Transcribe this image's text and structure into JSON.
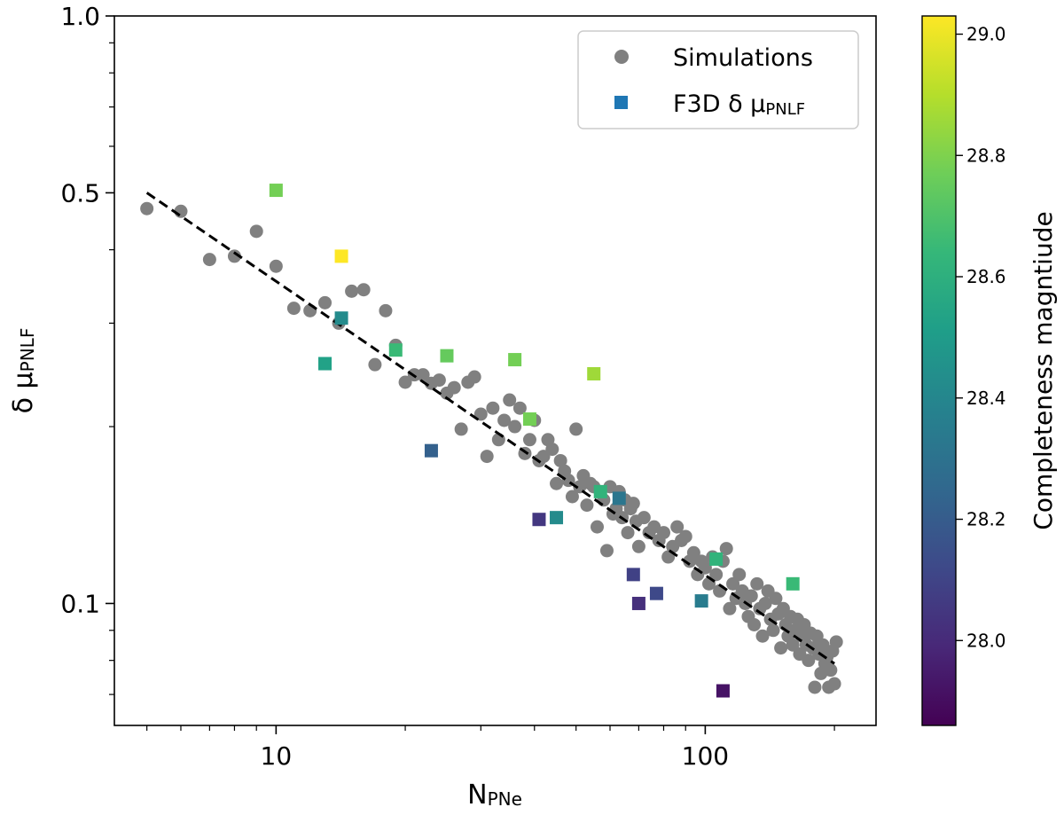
{
  "chart_data": {
    "type": "scatter",
    "xlabel": {
      "main": "N",
      "sub": "PNe"
    },
    "ylabel": {
      "main": "δ μ",
      "sub": "PNLF"
    },
    "xscale": "log",
    "yscale": "log",
    "xlim": [
      4.2,
      250
    ],
    "ylim": [
      0.062,
      1.0
    ],
    "x_major_ticks": [
      10,
      100
    ],
    "x_major_tick_labels": [
      "10",
      "100"
    ],
    "x_minor_ticks": [
      5,
      6,
      7,
      8,
      9,
      20,
      30,
      40,
      50,
      60,
      70,
      80,
      90,
      200
    ],
    "y_major_ticks": [
      0.1,
      0.5,
      1.0
    ],
    "y_major_tick_labels": [
      "0.1",
      "0.5",
      "1.0"
    ],
    "y_minor_ticks": [
      0.07,
      0.08,
      0.09,
      0.2,
      0.3,
      0.4,
      0.6,
      0.7,
      0.8,
      0.9
    ],
    "legend": {
      "position": "top-right",
      "entries": [
        {
          "label": "Simulations",
          "marker": "circle",
          "color": "#808080"
        },
        {
          "label_main": "F3D δ μ",
          "label_sub": "PNLF",
          "marker": "square",
          "color": "#1f77b4"
        }
      ]
    },
    "fit_line": {
      "style": "dashed",
      "color": "#000000",
      "x": [
        5,
        200
      ],
      "y": [
        0.5,
        0.079
      ]
    },
    "colorbar": {
      "label": "Completeness magntiude",
      "range": [
        27.86,
        29.03
      ],
      "ticks": [
        28.0,
        28.2,
        28.4,
        28.6,
        28.8,
        29.0
      ],
      "tick_labels": [
        "28.0",
        "28.2",
        "28.4",
        "28.6",
        "28.8",
        "29.0"
      ],
      "colormap": "viridis",
      "colormap_stops": [
        "#440154",
        "#482878",
        "#3e4989",
        "#31688e",
        "#26828e",
        "#1f9e89",
        "#35b779",
        "#6ece58",
        "#b5de2b",
        "#fde725"
      ]
    },
    "series": [
      {
        "name": "Simulations",
        "marker": "circle",
        "color": "#808080",
        "points": [
          [
            5.0,
            0.47
          ],
          [
            6.0,
            0.465
          ],
          [
            7.0,
            0.385
          ],
          [
            8.0,
            0.39
          ],
          [
            9.0,
            0.43
          ],
          [
            10.0,
            0.375
          ],
          [
            11.0,
            0.318
          ],
          [
            12.0,
            0.315
          ],
          [
            13.0,
            0.325
          ],
          [
            14.0,
            0.3
          ],
          [
            15.0,
            0.34
          ],
          [
            16.0,
            0.342
          ],
          [
            17.0,
            0.255
          ],
          [
            18.0,
            0.315
          ],
          [
            19.0,
            0.275
          ],
          [
            20.0,
            0.238
          ],
          [
            21.0,
            0.245
          ],
          [
            22.0,
            0.245
          ],
          [
            23.0,
            0.237
          ],
          [
            24.0,
            0.24
          ],
          [
            25.0,
            0.228
          ],
          [
            26.0,
            0.233
          ],
          [
            27.0,
            0.198
          ],
          [
            28.0,
            0.238
          ],
          [
            29.0,
            0.243
          ],
          [
            30.0,
            0.21
          ],
          [
            31.0,
            0.178
          ],
          [
            32.0,
            0.215
          ],
          [
            33.0,
            0.19
          ],
          [
            34.0,
            0.205
          ],
          [
            35.0,
            0.222
          ],
          [
            36.0,
            0.2
          ],
          [
            37.0,
            0.215
          ],
          [
            38.0,
            0.18
          ],
          [
            39.0,
            0.19
          ],
          [
            40.0,
            0.205
          ],
          [
            41.0,
            0.175
          ],
          [
            42.0,
            0.178
          ],
          [
            43.0,
            0.19
          ],
          [
            44.0,
            0.183
          ],
          [
            45.0,
            0.16
          ],
          [
            46.0,
            0.175
          ],
          [
            47.0,
            0.168
          ],
          [
            48.0,
            0.162
          ],
          [
            49.0,
            0.152
          ],
          [
            50.0,
            0.198
          ],
          [
            51.0,
            0.158
          ],
          [
            52.0,
            0.165
          ],
          [
            53.0,
            0.147
          ],
          [
            54.0,
            0.16
          ],
          [
            55.0,
            0.158
          ],
          [
            56.0,
            0.135
          ],
          [
            57.0,
            0.155
          ],
          [
            58.0,
            0.15
          ],
          [
            59.0,
            0.123
          ],
          [
            60.0,
            0.158
          ],
          [
            61.0,
            0.142
          ],
          [
            62.0,
            0.145
          ],
          [
            63.0,
            0.155
          ],
          [
            64.0,
            0.14
          ],
          [
            65.0,
            0.15
          ],
          [
            66.0,
            0.132
          ],
          [
            67.0,
            0.145
          ],
          [
            68.0,
            0.148
          ],
          [
            69.0,
            0.138
          ],
          [
            70.0,
            0.125
          ],
          [
            72.0,
            0.14
          ],
          [
            74.0,
            0.132
          ],
          [
            76.0,
            0.135
          ],
          [
            78.0,
            0.128
          ],
          [
            80.0,
            0.132
          ],
          [
            82.0,
            0.12
          ],
          [
            84.0,
            0.125
          ],
          [
            86.0,
            0.135
          ],
          [
            88.0,
            0.128
          ],
          [
            90.0,
            0.13
          ],
          [
            92.0,
            0.118
          ],
          [
            94.0,
            0.122
          ],
          [
            96.0,
            0.112
          ],
          [
            98.0,
            0.118
          ],
          [
            100.0,
            0.115
          ],
          [
            102.0,
            0.108
          ],
          [
            104.0,
            0.12
          ],
          [
            106.0,
            0.112
          ],
          [
            108.0,
            0.105
          ],
          [
            110.0,
            0.118
          ],
          [
            112.0,
            0.124
          ],
          [
            114.0,
            0.098
          ],
          [
            116.0,
            0.108
          ],
          [
            118.0,
            0.102
          ],
          [
            120.0,
            0.112
          ],
          [
            122.0,
            0.105
          ],
          [
            124.0,
            0.1
          ],
          [
            126.0,
            0.095
          ],
          [
            128.0,
            0.103
          ],
          [
            130.0,
            0.092
          ],
          [
            132.0,
            0.108
          ],
          [
            134.0,
            0.098
          ],
          [
            136.0,
            0.088
          ],
          [
            138.0,
            0.1
          ],
          [
            140.0,
            0.105
          ],
          [
            142.0,
            0.094
          ],
          [
            144.0,
            0.09
          ],
          [
            146.0,
            0.102
          ],
          [
            148.0,
            0.096
          ],
          [
            150.0,
            0.084
          ],
          [
            152.0,
            0.098
          ],
          [
            154.0,
            0.092
          ],
          [
            156.0,
            0.088
          ],
          [
            158.0,
            0.095
          ],
          [
            160.0,
            0.085
          ],
          [
            162.0,
            0.09
          ],
          [
            164.0,
            0.094
          ],
          [
            166.0,
            0.082
          ],
          [
            168.0,
            0.088
          ],
          [
            170.0,
            0.092
          ],
          [
            172.0,
            0.085
          ],
          [
            174.0,
            0.08
          ],
          [
            176.0,
            0.089
          ],
          [
            178.0,
            0.084
          ],
          [
            180.0,
            0.072
          ],
          [
            182.0,
            0.088
          ],
          [
            184.0,
            0.082
          ],
          [
            186.0,
            0.076
          ],
          [
            188.0,
            0.085
          ],
          [
            190.0,
            0.079
          ],
          [
            192.0,
            0.081
          ],
          [
            194.0,
            0.072
          ],
          [
            196.0,
            0.077
          ],
          [
            198.0,
            0.083
          ],
          [
            200.0,
            0.073
          ],
          [
            202.0,
            0.086
          ]
        ]
      },
      {
        "name": "F3D δ μ PNLF",
        "marker": "square",
        "points": [
          {
            "x": 10.0,
            "y": 0.505,
            "c": 28.78
          },
          {
            "x": 14.2,
            "y": 0.39,
            "c": 29.03
          },
          {
            "x": 14.2,
            "y": 0.306,
            "c": 28.42
          },
          {
            "x": 13.0,
            "y": 0.256,
            "c": 28.53
          },
          {
            "x": 19.0,
            "y": 0.27,
            "c": 28.65
          },
          {
            "x": 25.0,
            "y": 0.264,
            "c": 28.75
          },
          {
            "x": 36.0,
            "y": 0.26,
            "c": 28.78
          },
          {
            "x": 39.0,
            "y": 0.206,
            "c": 28.78
          },
          {
            "x": 23.0,
            "y": 0.182,
            "c": 28.22
          },
          {
            "x": 55.0,
            "y": 0.246,
            "c": 28.86
          },
          {
            "x": 41.0,
            "y": 0.139,
            "c": 28.05
          },
          {
            "x": 45.0,
            "y": 0.14,
            "c": 28.42
          },
          {
            "x": 57.0,
            "y": 0.155,
            "c": 28.62
          },
          {
            "x": 63.0,
            "y": 0.151,
            "c": 28.32
          },
          {
            "x": 68.0,
            "y": 0.112,
            "c": 28.09
          },
          {
            "x": 70.0,
            "y": 0.1,
            "c": 28.02
          },
          {
            "x": 77.0,
            "y": 0.104,
            "c": 28.12
          },
          {
            "x": 98.0,
            "y": 0.101,
            "c": 28.35
          },
          {
            "x": 106.0,
            "y": 0.119,
            "c": 28.62
          },
          {
            "x": 110.0,
            "y": 0.071,
            "c": 27.92
          },
          {
            "x": 160.0,
            "y": 0.108,
            "c": 28.65
          }
        ]
      }
    ]
  }
}
